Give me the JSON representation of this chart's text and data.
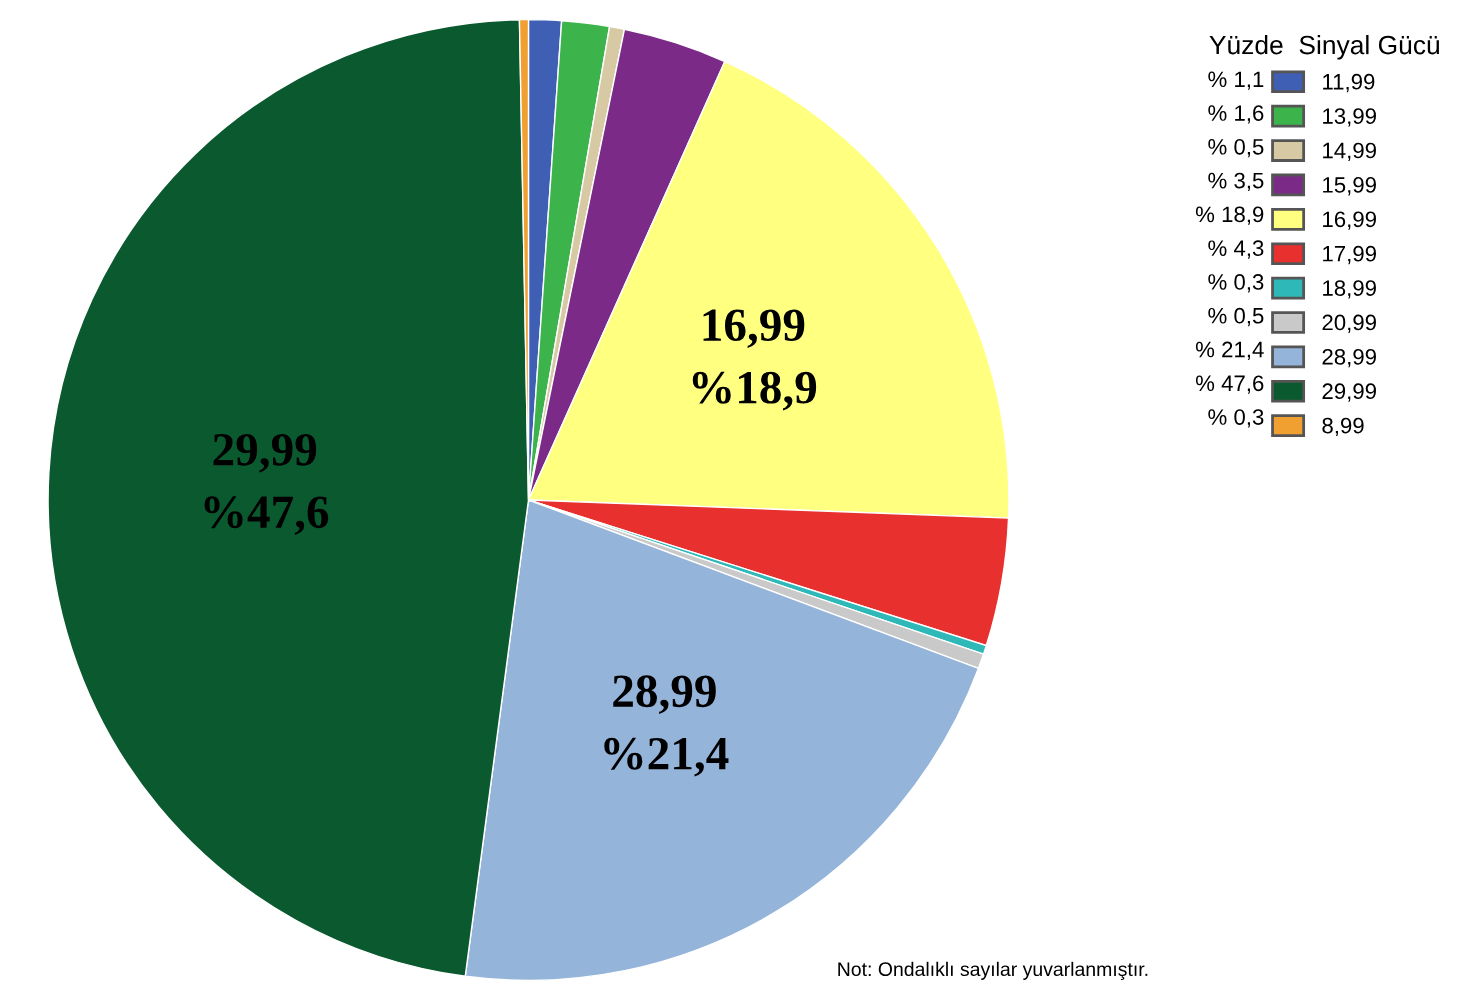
{
  "chart_data": {
    "type": "pie",
    "legend_title": "Yüzde  Sinyal Gücü",
    "legend": "right",
    "categories": [
      "11,99",
      "13,99",
      "14,99",
      "15,99",
      "16,99",
      "17,99",
      "18,99",
      "20,99",
      "28,99",
      "29,99",
      "8,99"
    ],
    "values": [
      1.1,
      1.6,
      0.5,
      3.5,
      18.9,
      4.3,
      0.3,
      0.5,
      21.4,
      47.6,
      0.3
    ],
    "value_labels": [
      "% 1,1",
      "% 1,6",
      "% 0,5",
      "% 3,5",
      "% 18,9",
      "% 4,3",
      "% 0,3",
      "% 0,5",
      "% 21,4",
      "% 47,6",
      "% 0,3"
    ],
    "colors": [
      "#3f5fb5",
      "#3cb44b",
      "#d6c9a3",
      "#7b2a88",
      "#ffff80",
      "#e8302e",
      "#2fb8b8",
      "#c9c9c9",
      "#95b4da",
      "#0b5a2f",
      "#f0a030"
    ],
    "annotations": [
      {
        "text": "16,99\n%18,9",
        "x": "16,99"
      },
      {
        "text": "28,99\n%21,4",
        "x": "28,99"
      },
      {
        "text": "29,99\n%47,6",
        "x": "29,99"
      },
      "Not: Ondalıklı sayılar yuvarlanmıştır."
    ]
  }
}
